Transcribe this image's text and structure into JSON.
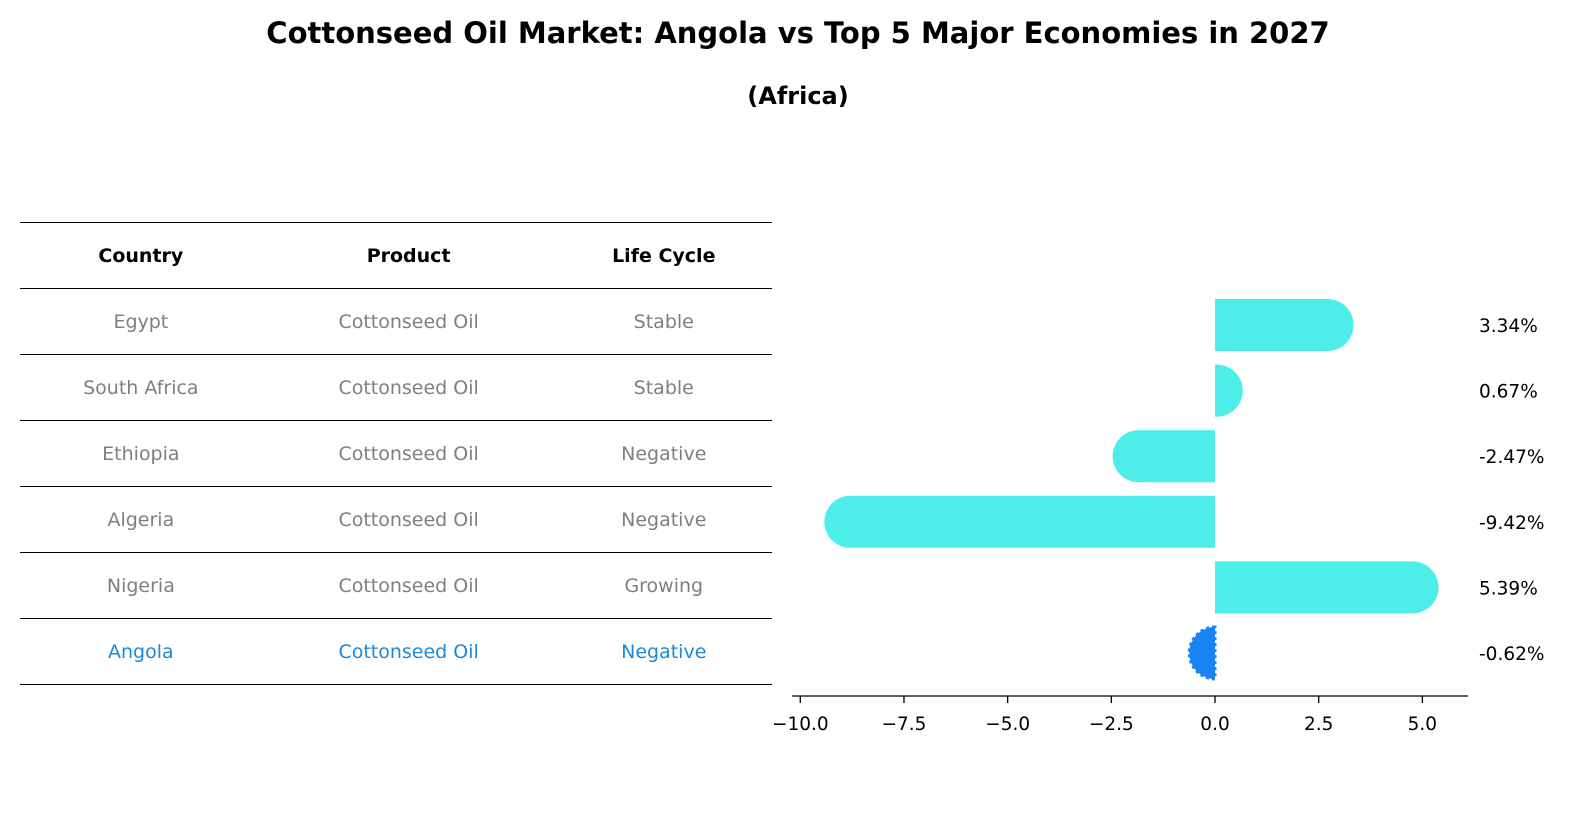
{
  "title": "Cottonseed Oil Market: Angola vs Top 5 Major Economies in 2027",
  "subtitle": "(Africa)",
  "table": {
    "headers": [
      "Country",
      "Product",
      "Life Cycle"
    ],
    "rows": [
      {
        "country": "Egypt",
        "product": "Cottonseed Oil",
        "life_cycle": "Stable"
      },
      {
        "country": "South Africa",
        "product": "Cottonseed Oil",
        "life_cycle": "Stable"
      },
      {
        "country": "Ethiopia",
        "product": "Cottonseed Oil",
        "life_cycle": "Negative"
      },
      {
        "country": "Algeria",
        "product": "Cottonseed Oil",
        "life_cycle": "Negative"
      },
      {
        "country": "Nigeria",
        "product": "Cottonseed Oil",
        "life_cycle": "Growing"
      },
      {
        "country": "Angola",
        "product": "Cottonseed Oil",
        "life_cycle": "Negative"
      }
    ]
  },
  "colors": {
    "bar": "#4deeea",
    "highlight_bar": "#1a85f2",
    "highlight_text": "#1f88d6",
    "muted_text": "#7f7f7f"
  },
  "chart_data": {
    "type": "bar",
    "orientation": "horizontal",
    "categories": [
      "Egypt",
      "South Africa",
      "Ethiopia",
      "Algeria",
      "Nigeria",
      "Angola"
    ],
    "values": [
      3.34,
      0.67,
      -2.47,
      -9.42,
      5.39,
      -0.62
    ],
    "value_labels": [
      "3.34%",
      "0.67%",
      "-2.47%",
      "-9.42%",
      "5.39%",
      "-0.62%"
    ],
    "highlight": "Angola",
    "xlim": [
      -10.2,
      6.1
    ],
    "xticks": [
      -10.0,
      -7.5,
      -5.0,
      -2.5,
      0.0,
      2.5,
      5.0
    ],
    "xtick_labels": [
      "−10.0",
      "−7.5",
      "−5.0",
      "−2.5",
      "0.0",
      "2.5",
      "5.0"
    ],
    "grid": false
  }
}
